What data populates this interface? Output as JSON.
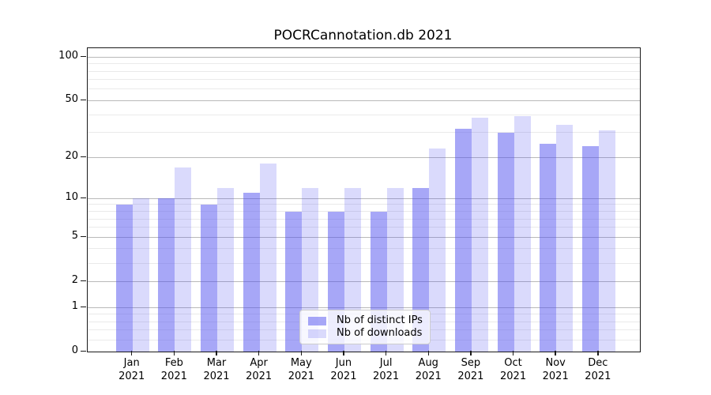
{
  "title": "POCRCannotation.db 2021",
  "chart_data": {
    "type": "bar",
    "title": "POCRCannotation.db 2021",
    "categories": [
      "Jan",
      "Feb",
      "Mar",
      "Apr",
      "May",
      "Jun",
      "Jul",
      "Aug",
      "Sep",
      "Oct",
      "Nov",
      "Dec"
    ],
    "category_year": "2021",
    "series": [
      {
        "name": "Nb of distinct IPs",
        "color": "#5050f0",
        "alpha": 0.5,
        "color_on_white": "#a8a8fa",
        "values": [
          9,
          10,
          9,
          11,
          8,
          8,
          8,
          12,
          32,
          30,
          25,
          24
        ]
      },
      {
        "name": "Nb of downloads",
        "color": "#5050f0",
        "alpha": 0.21,
        "color_on_white": "#d9d9f9",
        "values": [
          10,
          17,
          12,
          18,
          12,
          12,
          12,
          23,
          38,
          39,
          34,
          31
        ]
      }
    ],
    "xlabel": "",
    "ylabel": "",
    "yscale": "log(1+v)",
    "ylim": [
      0,
      115
    ],
    "yticks": [
      0,
      1,
      2,
      5,
      10,
      20,
      50,
      100
    ],
    "ytick_labels": [
      "0",
      "1",
      "2",
      "5",
      "10",
      "20",
      "50",
      "100"
    ],
    "yticks_minor": [
      0.2,
      0.4,
      0.6,
      0.8,
      3,
      4,
      6,
      7,
      8,
      9,
      30,
      40,
      60,
      70,
      80,
      90
    ],
    "grid": "on",
    "grid_major_color": "#b9b9b9",
    "grid_minor_color": "#eaeaea",
    "legend_position": "lower center",
    "legend_entries": [
      "Nb of distinct IPs",
      "Nb of downloads"
    ]
  }
}
